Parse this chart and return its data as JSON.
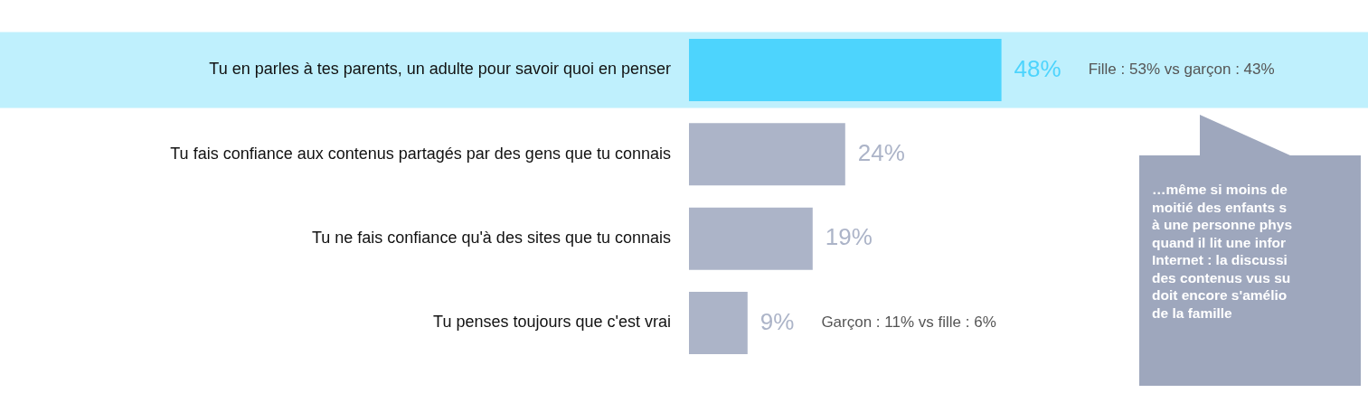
{
  "chart_data": {
    "type": "bar",
    "orientation": "horizontal",
    "categories": [
      "Tu en parles à tes parents, un adulte pour savoir quoi en penser",
      "Tu fais confiance aux contenus partagés par des gens que tu connais",
      "Tu ne fais confiance qu'à des sites que tu connais",
      "Tu penses toujours que c'est vrai"
    ],
    "values": [
      48,
      24,
      19,
      9
    ],
    "colors": [
      "#4dd4fd",
      "#acb4c8",
      "#acb4c8",
      "#acb4c8"
    ],
    "value_labels": [
      "48%",
      "24%",
      "19%",
      "9%"
    ],
    "bands": [
      {
        "axis": "y",
        "from": "Tu en parles à tes parents, un adulte pour savoir quoi en penser",
        "to": "Tu en parles à tes parents, un adulte pour savoir quoi en penser",
        "color": "#bff0fd"
      }
    ],
    "annotations": [
      "Fille : 53% vs garçon : 43%",
      "Garçon : 11% vs fille : 6%",
      "…même si moins de\nmoitié des enfants s\nà une personne phys\nquand il lit une infor\nInternet : la discussi\ndes contenus vus su\ndoit encore s'amélio\nde la famille"
    ],
    "legend": false
  }
}
